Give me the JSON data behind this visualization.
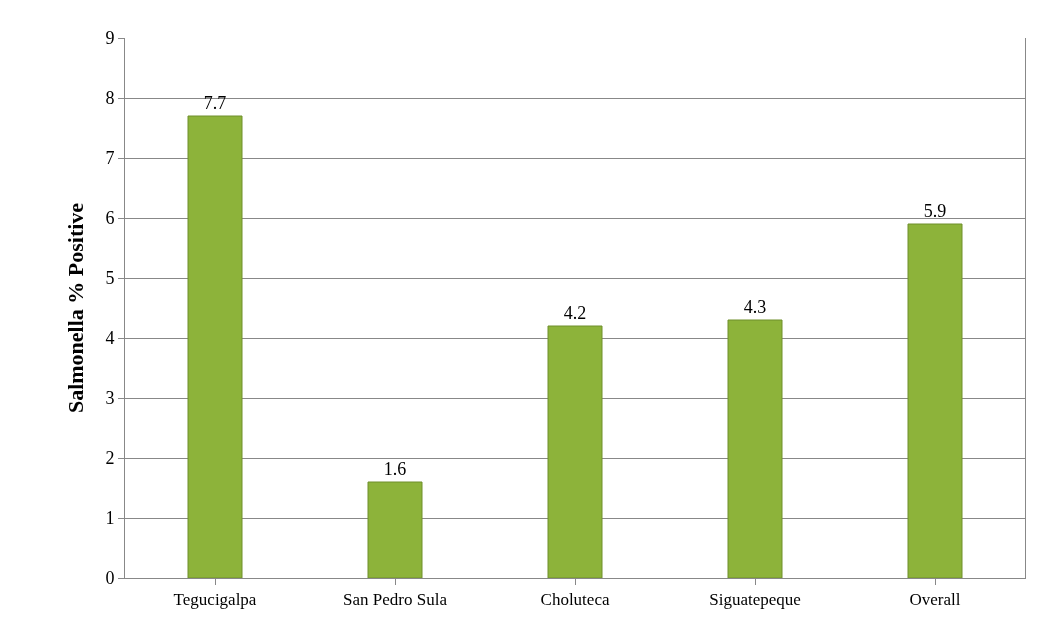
{
  "chart_data": {
    "type": "bar",
    "ylabel": "Salmonella % Positive",
    "categories": [
      "Tegucigalpa",
      "San Pedro Sula",
      "Choluteca",
      "Siguatepeque",
      "Overall"
    ],
    "values": [
      7.7,
      1.6,
      4.2,
      4.3,
      5.9
    ],
    "color": "#8db33a",
    "ylim": [
      0,
      9
    ],
    "yticks": [
      0,
      1,
      2,
      3,
      4,
      5,
      6,
      7,
      8,
      9
    ],
    "grid": "y",
    "data_labels": true
  }
}
